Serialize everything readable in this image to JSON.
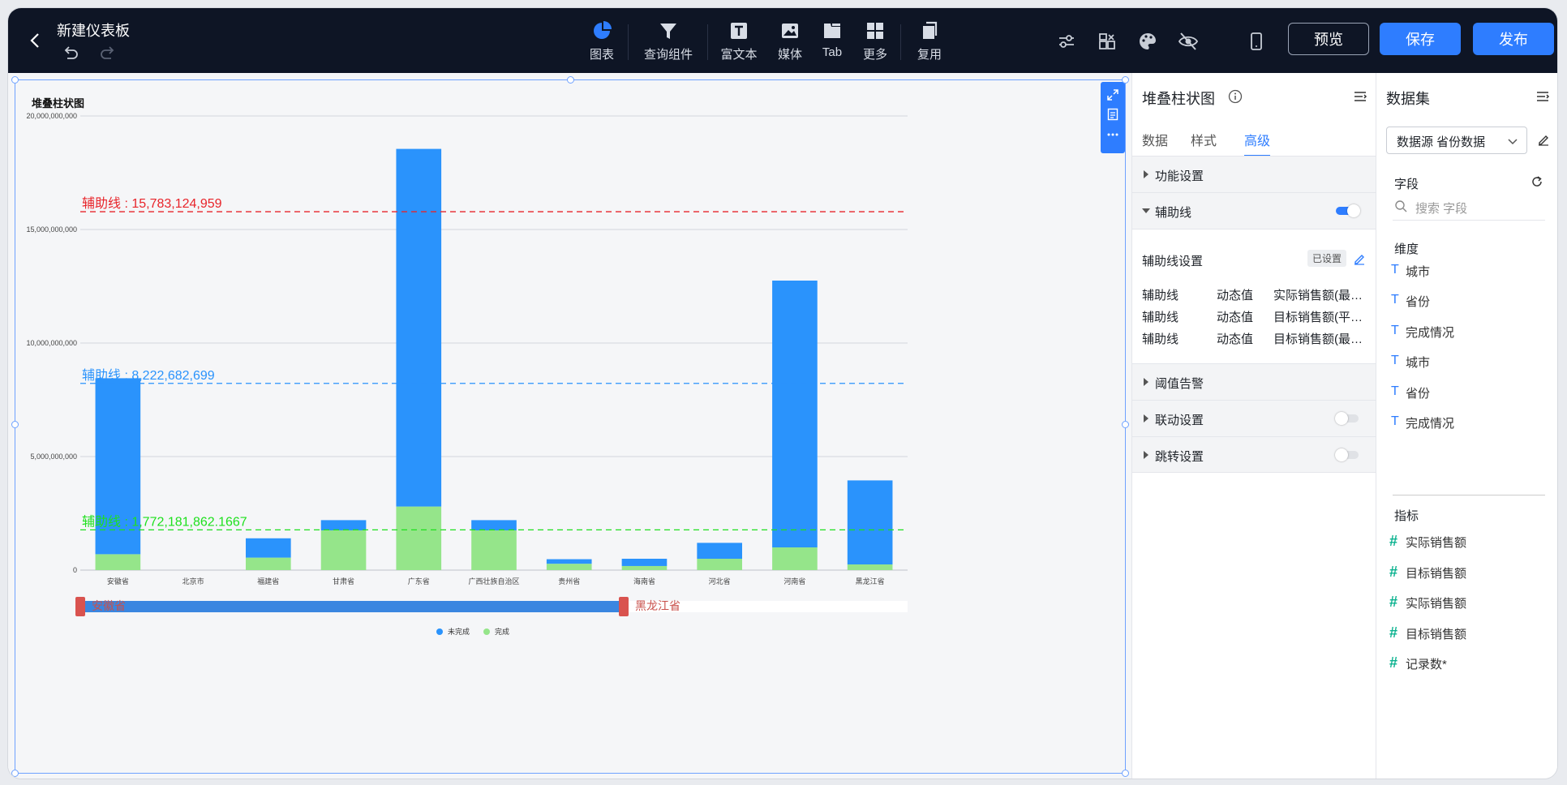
{
  "header": {
    "title": "新建仪表板",
    "tools": [
      {
        "label": "图表",
        "icon": "pie-chart-icon"
      },
      {
        "label": "查询组件",
        "icon": "filter-icon"
      },
      {
        "label": "富文本",
        "icon": "text-icon"
      },
      {
        "label": "媒体",
        "icon": "image-icon"
      },
      {
        "label": "Tab",
        "icon": "tab-icon"
      },
      {
        "label": "更多",
        "icon": "grid-icon"
      },
      {
        "label": "复用",
        "icon": "copy-icon"
      }
    ],
    "preview_label": "预览",
    "save_label": "保存",
    "publish_label": "发布"
  },
  "chart": {
    "title": "堆叠柱状图",
    "zoom_start_label": "安徽省",
    "zoom_end_label": "黑龙江省"
  },
  "chart_data": {
    "type": "bar",
    "stacked": true,
    "categories": [
      "安徽省",
      "北京市",
      "福建省",
      "甘肃省",
      "广东省",
      "广西壮族自治区",
      "贵州省",
      "海南省",
      "河北省",
      "河南省",
      "黑龙江省"
    ],
    "series": [
      {
        "name": "完成",
        "color": "#95e58a",
        "values": [
          700000000,
          0,
          550000000,
          1750000000,
          2800000000,
          1750000000,
          280000000,
          180000000,
          500000000,
          1000000000,
          250000000
        ]
      },
      {
        "name": "未完成",
        "color": "#2a93fc",
        "values": [
          7750000000,
          0,
          850000000,
          450000000,
          15750000000,
          450000000,
          200000000,
          320000000,
          700000000,
          11750000000,
          3700000000
        ]
      }
    ],
    "ylim": [
      0,
      20000000000
    ],
    "y_ticks": [
      "0",
      "5,000,000,000",
      "10,000,000,000",
      "15,000,000,000",
      "20,000,000,000"
    ],
    "y_tick_values": [
      0,
      5000000000,
      10000000000,
      15000000000,
      20000000000
    ],
    "reference_lines": [
      {
        "label": "辅助线 : 15,783,124,959",
        "value": 15783124959,
        "color": "#e8242a"
      },
      {
        "label": "辅助线 : 8,222,682,699",
        "value": 8222682699,
        "color": "#2a93fc"
      },
      {
        "label": "辅助线 : 1,772,181,862.1667",
        "value": 1772181862.1667,
        "color": "#1ee01e"
      }
    ],
    "legend": [
      "未完成",
      "完成"
    ],
    "legend_position": "bottom",
    "grid": true
  },
  "props": {
    "title": "堆叠柱状图",
    "tabs": [
      "数据",
      "样式",
      "高级"
    ],
    "active_tab": "高级",
    "sections": {
      "function": "功能设置",
      "refline": "辅助线",
      "threshold": "阈值告警",
      "linkage": "联动设置",
      "jump": "跳转设置"
    },
    "refline_settings_label": "辅助线设置",
    "refline_status": "已设置",
    "refline_rows": [
      {
        "name": "辅助线",
        "type": "动态值",
        "field": "实际销售额(最…"
      },
      {
        "name": "辅助线",
        "type": "动态值",
        "field": "目标销售额(平…"
      },
      {
        "name": "辅助线",
        "type": "动态值",
        "field": "目标销售额(最…"
      }
    ]
  },
  "dataset": {
    "title": "数据集",
    "source": "数据源 省份数据",
    "fields_label": "字段",
    "search_placeholder": "搜索 字段",
    "dimension_label": "维度",
    "dimensions": [
      "城市",
      "省份",
      "完成情况",
      "城市",
      "省份",
      "完成情况"
    ],
    "measure_label": "指标",
    "measures": [
      "实际销售额",
      "目标销售额",
      "实际销售额",
      "目标销售额",
      "记录数*"
    ]
  }
}
